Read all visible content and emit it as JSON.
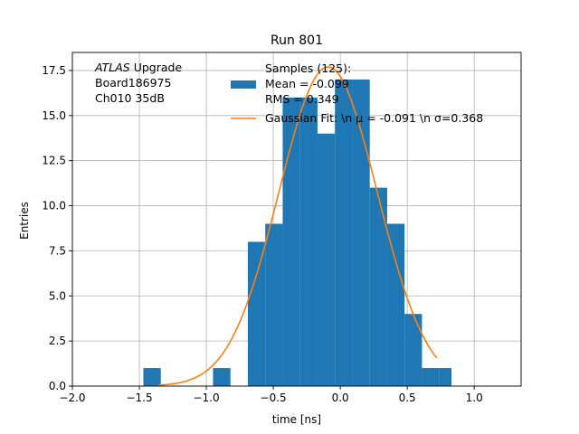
{
  "chart_data": {
    "type": "bar",
    "title": "Run 801",
    "xlabel": "time [ns]",
    "ylabel": "Entries",
    "xlim": [
      -2.0,
      1.35
    ],
    "ylim": [
      0,
      18.5
    ],
    "xticks": [
      -2.0,
      -1.5,
      -1.0,
      -0.5,
      0.0,
      0.5,
      1.0
    ],
    "xtick_labels": [
      "−2.0",
      "−1.5",
      "−1.0",
      "−0.5",
      "0.0",
      "0.5",
      "1.0"
    ],
    "yticks": [
      0.0,
      2.5,
      5.0,
      7.5,
      10.0,
      12.5,
      15.0,
      17.5
    ],
    "ytick_labels": [
      "0.0",
      "2.5",
      "5.0",
      "7.5",
      "10.0",
      "12.5",
      "15.0",
      "17.5"
    ],
    "grid": true,
    "bin_edges": [
      -1.47,
      -1.34,
      -1.21,
      -1.08,
      -0.95,
      -0.82,
      -0.69,
      -0.56,
      -0.43,
      -0.3,
      -0.17,
      -0.04,
      0.09,
      0.22,
      0.35,
      0.48,
      0.61,
      0.74,
      0.83
    ],
    "series": [
      {
        "name": "Samples (125):",
        "kind": "histogram",
        "color": "#1f77b4",
        "values": [
          1,
          0,
          0,
          0,
          1,
          0,
          8,
          9,
          16,
          16,
          14,
          17,
          17,
          11,
          9,
          4,
          1,
          1
        ]
      },
      {
        "name": "Gaussian Fit: \\n μ = -0.091 \\n σ=0.368",
        "kind": "line",
        "color": "#ff7f0e",
        "mu": -0.091,
        "sigma": 0.368,
        "amplitude": 17.7,
        "x_range": [
          -1.36,
          0.72
        ]
      }
    ],
    "legend": {
      "placement": "top-center",
      "entries": [
        {
          "lines": [
            "Samples (125):",
            " Mean = -0.099",
            " RMS = 0.349"
          ],
          "color": "#1f77b4",
          "kind": "patch"
        },
        {
          "lines": [
            "Gaussian Fit: \\n μ = -0.091 \\n σ=0.368"
          ],
          "color": "#ff7f0e",
          "kind": "line"
        }
      ]
    },
    "annotation": {
      "placement": "top-left",
      "lines": [
        "ATLAS Upgrade",
        " Board186975",
        " Ch010 35dB"
      ]
    }
  }
}
